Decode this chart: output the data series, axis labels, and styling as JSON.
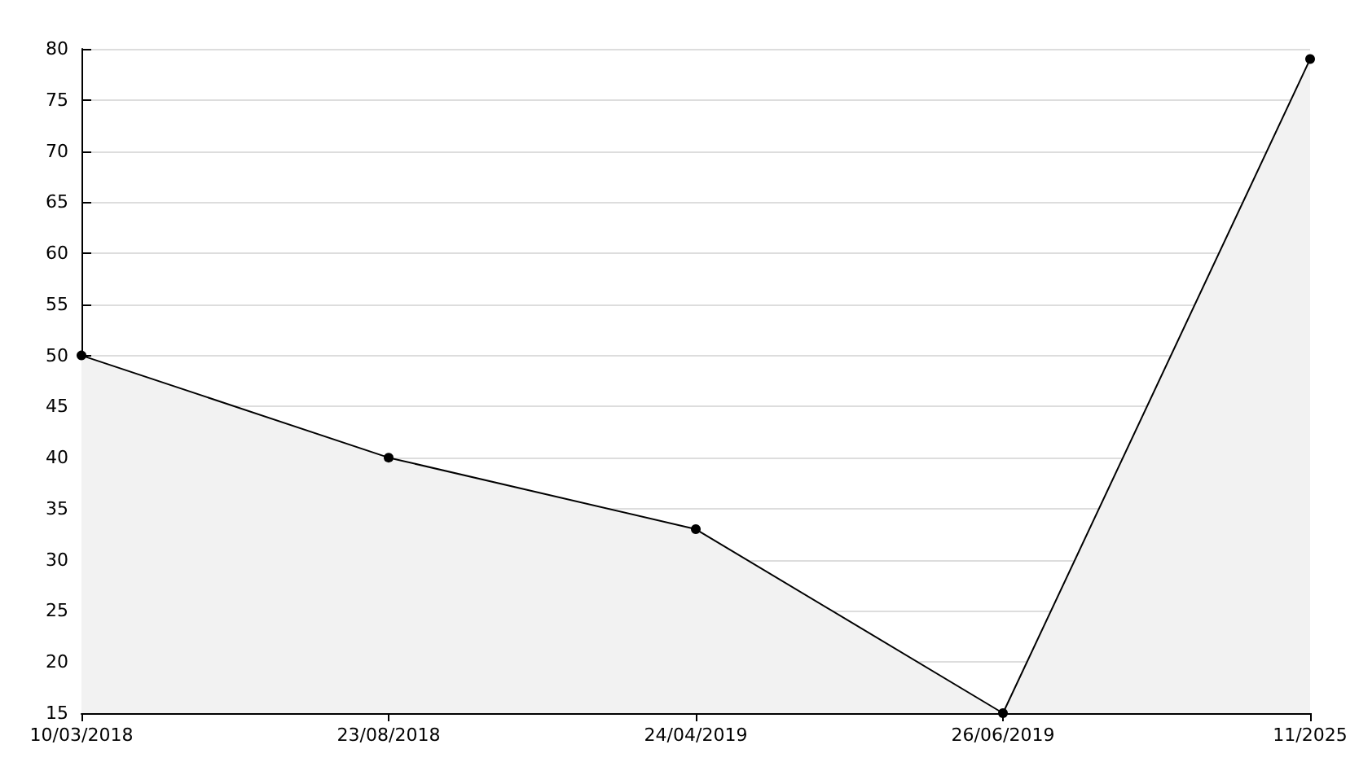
{
  "chart_data": {
    "type": "area",
    "categories": [
      "10/03/2018",
      "23/08/2018",
      "24/04/2019",
      "26/06/2019",
      "11/2025"
    ],
    "series": [
      {
        "color": "#000000",
        "values": [
          50,
          40,
          33,
          15,
          79
        ]
      }
    ],
    "ylim": [
      15,
      80
    ],
    "yticks": [
      15,
      20,
      25,
      30,
      35,
      40,
      45,
      50,
      55,
      60,
      65,
      70,
      75,
      80
    ],
    "grid": "y",
    "marker": "circle",
    "line_style": "solid"
  }
}
